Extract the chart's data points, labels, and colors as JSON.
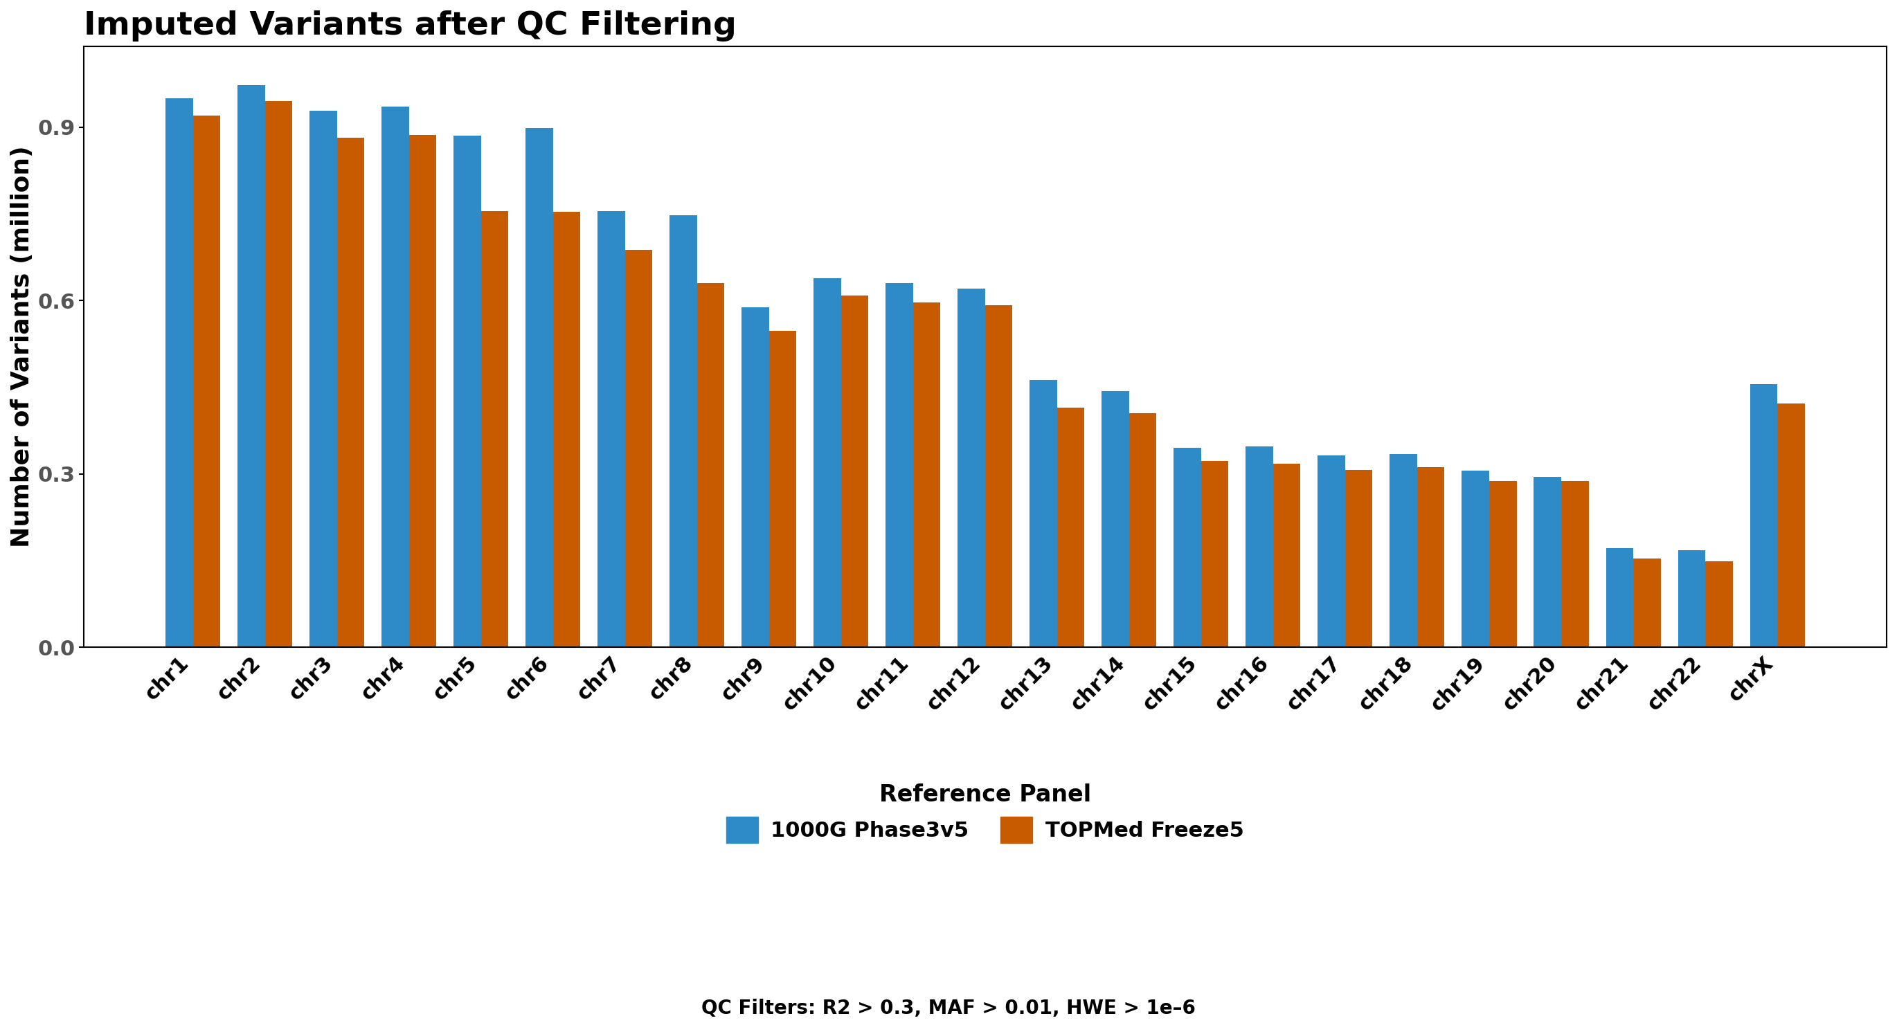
{
  "title": "Imputed Variants after QC Filtering",
  "ylabel": "Number of Variants (million)",
  "chromosomes": [
    "chr1",
    "chr2",
    "chr3",
    "chr4",
    "chr5",
    "chr6",
    "chr7",
    "chr8",
    "chr9",
    "chr10",
    "chr11",
    "chr12",
    "chr13",
    "chr14",
    "chr15",
    "chr16",
    "chr17",
    "chr18",
    "chr19",
    "chr20",
    "chr21",
    "chr22",
    "chrX"
  ],
  "values_1000G": [
    0.95,
    0.972,
    0.928,
    0.935,
    0.885,
    0.898,
    0.755,
    0.748,
    0.588,
    0.638,
    0.63,
    0.62,
    0.463,
    0.443,
    0.345,
    0.348,
    0.332,
    0.334,
    0.306,
    0.295,
    0.172,
    0.168,
    0.455
  ],
  "values_TOPMed": [
    0.92,
    0.945,
    0.882,
    0.886,
    0.755,
    0.753,
    0.688,
    0.63,
    0.548,
    0.608,
    0.597,
    0.592,
    0.415,
    0.405,
    0.322,
    0.318,
    0.307,
    0.312,
    0.288,
    0.288,
    0.153,
    0.149,
    0.422
  ],
  "color_1000G": "#2E8BC8",
  "color_TOPMed": "#C85A00",
  "legend_title": "Reference Panel",
  "legend_1000G": "1000G Phase3v5",
  "legend_TOPMed": "TOPMed Freeze5",
  "footnote": "QC Filters: R2 > 0.3, MAF > 0.01, HWE > 1e–6",
  "ylim": [
    0.0,
    1.04
  ],
  "yticks": [
    0.0,
    0.3,
    0.6,
    0.9
  ],
  "title_fontsize": 34,
  "ylabel_fontsize": 26,
  "tick_fontsize": 22,
  "legend_title_fontsize": 24,
  "legend_fontsize": 22,
  "footnote_fontsize": 20
}
